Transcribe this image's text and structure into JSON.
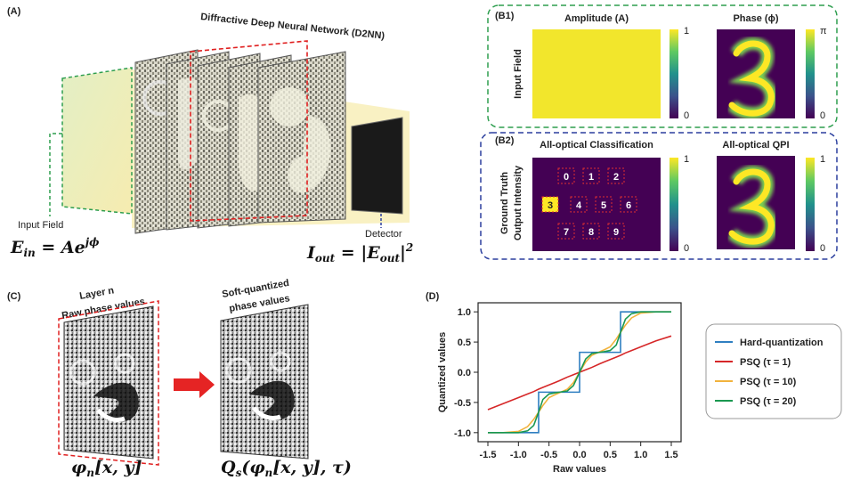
{
  "figure": {
    "panel_a": {
      "label": "(A)",
      "title": "Diffractive Deep Neural Network (D2NN)",
      "input_label": "Input Field",
      "detector_label": "Detector",
      "input_equation": {
        "lhs": "E",
        "lhs_sub": "in",
        "rhs": " = Ae",
        "rhs_sup": "jϕ"
      },
      "output_equation": {
        "lhs": "I",
        "lhs_sub": "out",
        "rhs": " = |E",
        "rhs_sub": "out",
        "tail": "|",
        "tail_sup": "2"
      }
    },
    "panel_b1": {
      "label": "(B1)",
      "row_label": "Input Field",
      "amplitude_title": "Amplitude (A)",
      "phase_title": "Phase (ϕ)",
      "amplitude_colorbar": {
        "max": 1,
        "min": 0
      },
      "phase_colorbar": {
        "max": "π",
        "min": 0
      }
    },
    "panel_b2": {
      "label": "(B2)",
      "row_label_1": "Ground Truth",
      "row_label_2": "Output Intensity",
      "classification_title": "All-optical Classification",
      "qpi_title": "All-optical QPI",
      "digits": [
        "0",
        "1",
        "2",
        "3",
        "4",
        "5",
        "6",
        "7",
        "8",
        "9"
      ],
      "classification_colorbar": {
        "max": 1,
        "min": 0
      },
      "qpi_colorbar": {
        "max": 1,
        "min": 0
      }
    },
    "panel_c": {
      "label": "(C)",
      "layer_title": "Layer n",
      "raw_label": "Raw phase values",
      "soft_label_1": "Soft-quantized",
      "soft_label_2": "phase values",
      "layer_equation": {
        "base": "φ",
        "sub": "n",
        "rest": "[x, y]"
      },
      "quantized_equation": {
        "base": "Q",
        "sub": "s",
        "rest": "(φ",
        "rest_sub": "n",
        "tail": "[x, y], τ)"
      }
    },
    "panel_d": {
      "label": "(D)"
    }
  },
  "chart_data": {
    "type": "line",
    "xlabel": "Raw values",
    "ylabel": "Quantized values",
    "x": [
      -1.5,
      -1.25,
      -1.0,
      -0.85,
      -0.75,
      -0.67,
      -0.67,
      -0.6,
      -0.5,
      -0.4,
      -0.33,
      -0.2,
      -0.1,
      0,
      0,
      0.1,
      0.2,
      0.33,
      0.4,
      0.5,
      0.6,
      0.67,
      0.67,
      0.75,
      0.85,
      1.0,
      1.25,
      1.5
    ],
    "series": [
      {
        "name": "Hard-quantization",
        "color": "#2f7fc1",
        "values": [
          -1,
          -1,
          -1,
          -1,
          -1,
          -1,
          -0.33,
          -0.33,
          -0.33,
          -0.33,
          -0.33,
          -0.33,
          -0.33,
          -0.33,
          0.33,
          0.33,
          0.33,
          0.33,
          0.33,
          0.33,
          0.33,
          0.33,
          1,
          1,
          1,
          1,
          1,
          1
        ]
      },
      {
        "name": "PSQ (τ = 1)",
        "color": "#d62728",
        "values": [
          -0.62,
          -0.52,
          -0.42,
          -0.36,
          -0.32,
          -0.28,
          -0.28,
          -0.25,
          -0.21,
          -0.17,
          -0.14,
          -0.08,
          -0.04,
          0,
          0,
          0.04,
          0.08,
          0.14,
          0.17,
          0.21,
          0.25,
          0.28,
          0.28,
          0.32,
          0.36,
          0.42,
          0.52,
          0.6
        ]
      },
      {
        "name": "PSQ (τ = 10)",
        "color": "#f2b33d",
        "values": [
          -1,
          -1,
          -0.98,
          -0.9,
          -0.78,
          -0.66,
          -0.66,
          -0.55,
          -0.42,
          -0.37,
          -0.34,
          -0.28,
          -0.17,
          0,
          0,
          0.17,
          0.28,
          0.34,
          0.37,
          0.42,
          0.55,
          0.66,
          0.66,
          0.78,
          0.9,
          0.98,
          1,
          1
        ]
      },
      {
        "name": "PSQ (τ = 20)",
        "color": "#1a9850",
        "values": [
          -1,
          -1,
          -1,
          -0.97,
          -0.88,
          -0.66,
          -0.66,
          -0.45,
          -0.36,
          -0.34,
          -0.33,
          -0.31,
          -0.22,
          0,
          0,
          0.22,
          0.31,
          0.33,
          0.34,
          0.36,
          0.45,
          0.66,
          0.66,
          0.88,
          0.97,
          1,
          1,
          1
        ]
      }
    ],
    "xlim": [
      -1.66,
      1.66
    ],
    "ylim": [
      -1.15,
      1.15
    ],
    "xticks": [
      -1.5,
      {
        "value": -1,
        "label": "-1.0"
      },
      -0.5,
      {
        "value": 0,
        "label": "0.0"
      },
      0.5,
      {
        "value": 1,
        "label": "1.0"
      },
      1.5
    ],
    "yticks": [
      {
        "value": -1,
        "label": "-1.0"
      },
      -0.5,
      {
        "value": 0,
        "label": "0.0"
      },
      0.5,
      {
        "value": 1,
        "label": "1.0"
      }
    ],
    "legend": "right"
  }
}
